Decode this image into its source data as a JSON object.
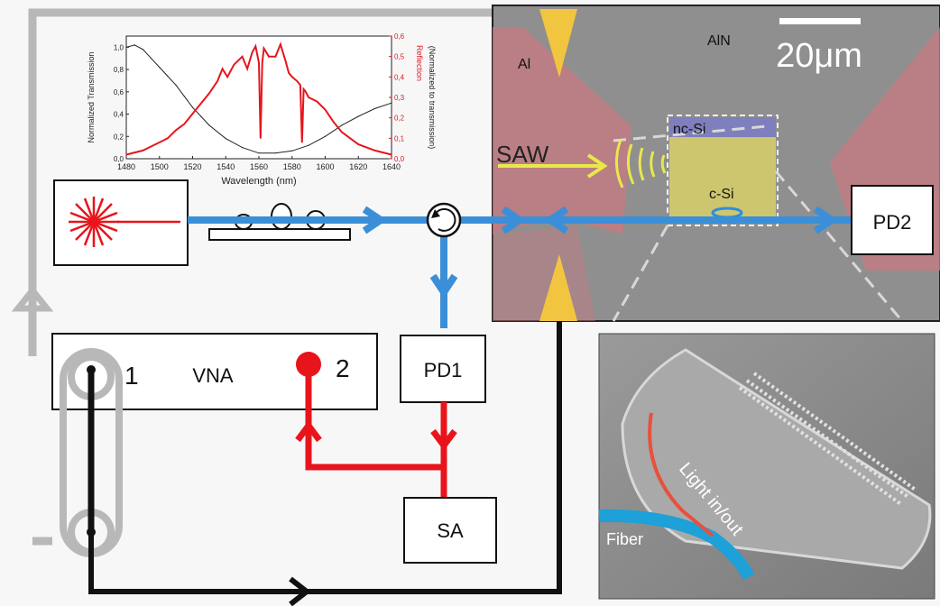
{
  "blocks": {
    "vna": "VNA",
    "port1": "1",
    "port2": "2",
    "pd1": "PD1",
    "pd2": "PD2",
    "sa": "SA"
  },
  "micrograph": {
    "scale_bar": "20μm",
    "aln": "AlN",
    "al": "Al",
    "saw": "SAW",
    "nc_si": "nc-Si",
    "c_si": "c-Si"
  },
  "sem": {
    "fiber": "Fiber",
    "light": "Light in/out"
  },
  "chart": {
    "xlabel": "Wavelength (nm)",
    "ylabel_left": "Normalized Transmission",
    "ylabel_right_1": "Reflection",
    "ylabel_right_2": "(Normalized to transmission)",
    "x_ticks": [
      "1480",
      "1500",
      "1520",
      "1540",
      "1560",
      "1580",
      "1600",
      "1620",
      "1640"
    ],
    "y_left_ticks": [
      "0,0",
      "0,2",
      "0,4",
      "0,6",
      "0,8",
      "1,0"
    ],
    "y_right_ticks": [
      "0,0",
      "0,1",
      "0,2",
      "0,3",
      "0,4",
      "0,5",
      "0,6"
    ]
  },
  "chart_data": {
    "type": "line",
    "xlim": [
      1480,
      1640
    ],
    "series": [
      {
        "axis": "left",
        "color": "#222222",
        "x": [
          1480,
          1485,
          1490,
          1495,
          1500,
          1505,
          1510,
          1515,
          1520,
          1525,
          1530,
          1540,
          1550,
          1560,
          1570,
          1580,
          1590,
          1600,
          1610,
          1620,
          1630,
          1640
        ],
        "y": [
          1.0,
          1.02,
          0.98,
          0.9,
          0.82,
          0.74,
          0.66,
          0.56,
          0.46,
          0.38,
          0.3,
          0.18,
          0.1,
          0.05,
          0.05,
          0.07,
          0.12,
          0.2,
          0.3,
          0.38,
          0.45,
          0.5
        ]
      },
      {
        "axis": "right",
        "color": "#e8141c",
        "x": [
          1480,
          1490,
          1500,
          1505,
          1510,
          1515,
          1520,
          1525,
          1530,
          1535,
          1538,
          1541,
          1545,
          1550,
          1553,
          1556,
          1558,
          1560,
          1561,
          1562,
          1563,
          1566,
          1570,
          1573,
          1576,
          1578,
          1580,
          1583,
          1585,
          1586,
          1587,
          1588,
          1590,
          1595,
          1600,
          1605,
          1610,
          1615,
          1620,
          1630,
          1640
        ],
        "y": [
          0.02,
          0.04,
          0.08,
          0.1,
          0.14,
          0.17,
          0.22,
          0.27,
          0.32,
          0.38,
          0.44,
          0.4,
          0.46,
          0.5,
          0.44,
          0.52,
          0.55,
          0.47,
          0.1,
          0.47,
          0.54,
          0.5,
          0.5,
          0.56,
          0.48,
          0.42,
          0.4,
          0.38,
          0.36,
          0.08,
          0.34,
          0.33,
          0.3,
          0.28,
          0.24,
          0.18,
          0.13,
          0.1,
          0.07,
          0.04,
          0.02
        ]
      }
    ]
  }
}
